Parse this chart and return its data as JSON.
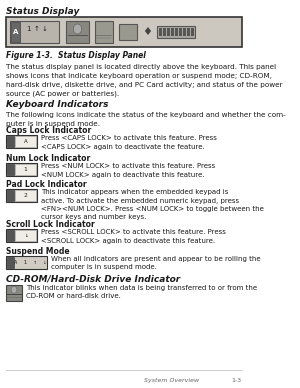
{
  "bg_color": "#ffffff",
  "title": "Status Display",
  "figure_caption": "Figure 1-3.  Status Display Panel",
  "body_text": "The status display panel is located directly above the keyboard. This panel\nshows icons that indicate keyboard operation or suspend mode; CD-ROM,\nhard-disk drive, diskette drive, and PC Card activity; and status of the power\nsource (AC power or batteries).",
  "section1_title": "Keyboard Indicators",
  "section1_body": "The following icons indicate the status of the keyboard and whether the com-\nputer is in suspend mode.",
  "subsections": [
    {
      "title": "Caps Lock Indicator",
      "icon_label": "A",
      "text": "Press <CAPS LOCK> to activate this feature. Press\n<CAPS LOCK> again to deactivate the feature."
    },
    {
      "title": "Num Lock Indicator",
      "icon_label": "1",
      "text": "Press <NUM LOCK> to activate this feature. Press\n<NUM LOCK> again to deactivate this feature."
    },
    {
      "title": "Pad Lock Indicator",
      "icon_label": "2",
      "text": "This indicator appears when the embedded keypad is\nactive. To activate the embedded numeric keypad, press\n<FN><NUM LOCK>. Press <NUM LOCK> to toggle between the\ncursor keys and number keys."
    },
    {
      "title": "Scroll Lock Indicator",
      "icon_label": "↓",
      "text": "Press <SCROLL LOCK> to activate this feature. Press\n<SCROLL LOCK> again to deactivate this feature."
    },
    {
      "title": "Suspend Mode",
      "icon_label": "A 1",
      "text": "When all indicators are present and appear to be rolling the\ncomputer is in suspend mode."
    }
  ],
  "section2_title": "CD-ROM/Hard-Disk Drive Indicator",
  "section2_body": "This indicator blinks when data is being transferred to or from the\nCD-ROM or hard-disk drive.",
  "footer_left": "System Overview",
  "footer_right": "1-3",
  "text_color": "#1a1a1a",
  "icon_outer_color": "#d0ccc4",
  "icon_sq_color": "#555555",
  "icon_label_bg": "#f0ece6",
  "panel_bg": "#ccc8c0",
  "panel_border": "#333333"
}
